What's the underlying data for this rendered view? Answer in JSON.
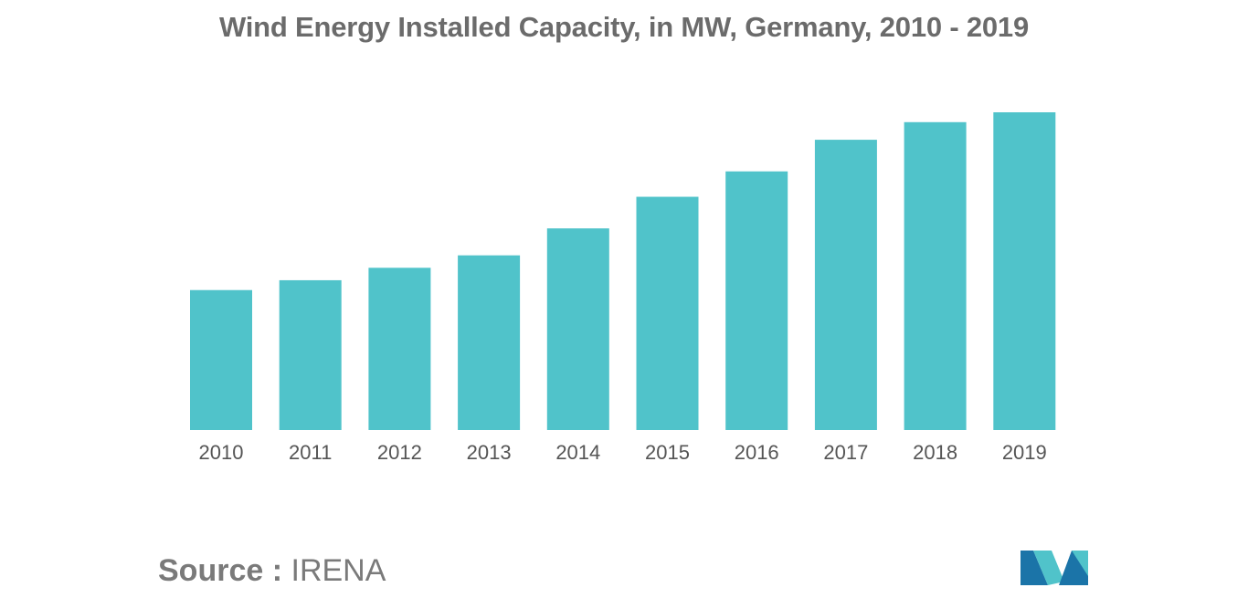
{
  "chart_data": {
    "type": "bar",
    "title": "Wind Energy Installed Capacity, in MW, Germany, 2010 - 2019",
    "xlabel": "",
    "ylabel": "",
    "categories": [
      "2010",
      "2011",
      "2012",
      "2013",
      "2014",
      "2015",
      "2016",
      "2017",
      "2018",
      "2019"
    ],
    "values": [
      27000,
      28900,
      31300,
      33700,
      38900,
      45000,
      49900,
      56000,
      59400,
      61300
    ],
    "ylim": [
      0,
      61300
    ],
    "grid": false,
    "legend": "none",
    "bar_color": "#50c3ca"
  },
  "source": {
    "label": "Source :",
    "value": "IRENA"
  },
  "logo": {
    "name": "mordor-intelligence-logo",
    "colors": [
      "#1b74a8",
      "#50c3ca"
    ]
  }
}
